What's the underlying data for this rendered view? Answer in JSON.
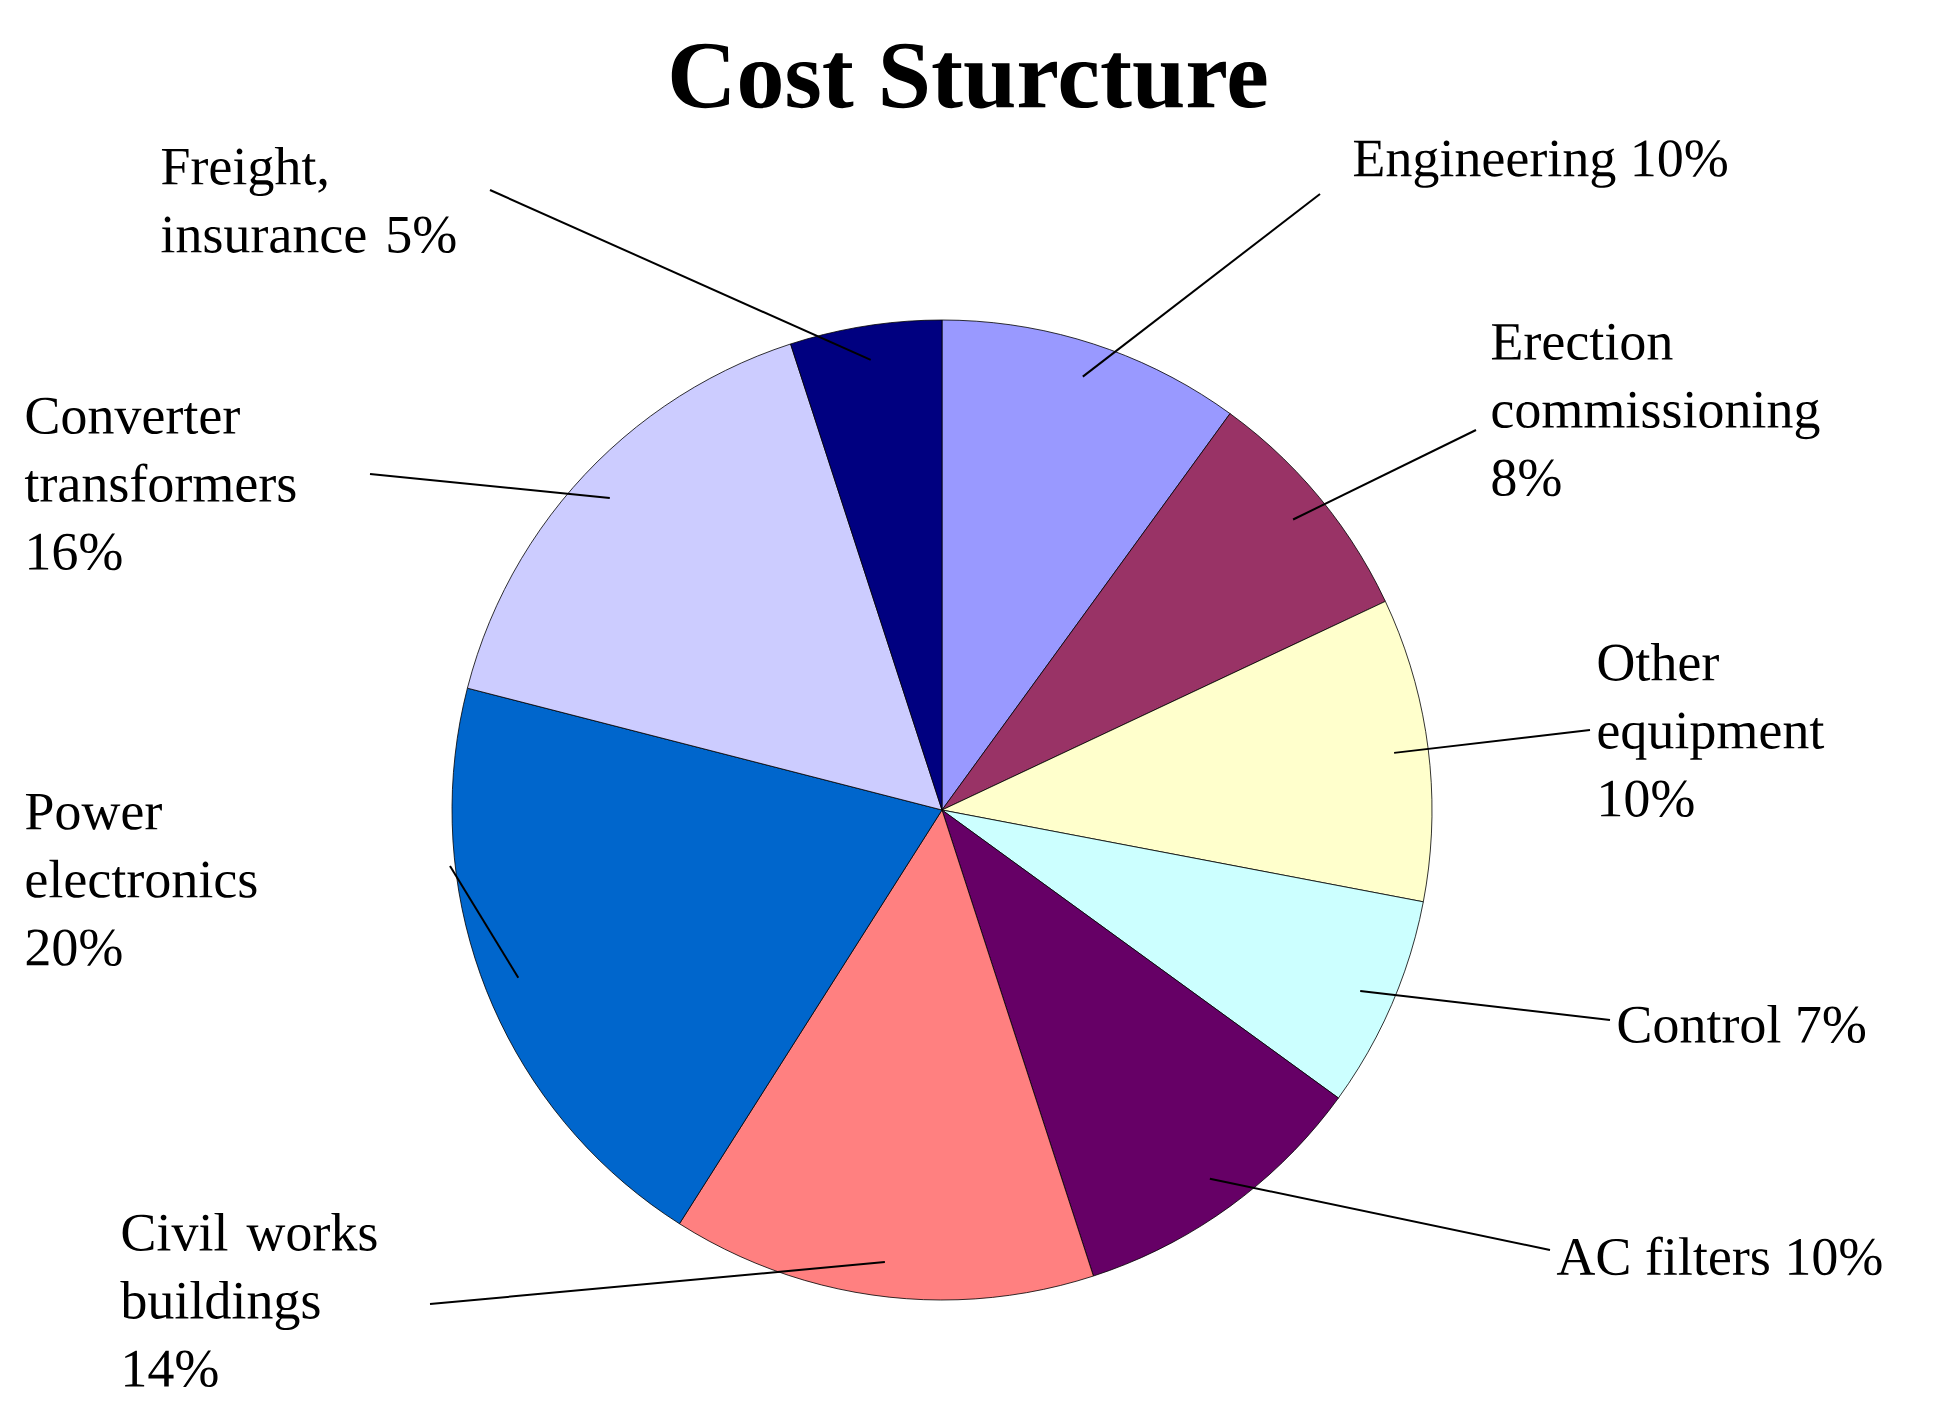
{
  "chart_data": {
    "type": "pie",
    "title": "Cost Sturcture",
    "categories": [
      "Engineering",
      "Erection commissioning",
      "Other equipment",
      "Control",
      "AC filters",
      "Civil works buildings",
      "Power electronics",
      "Converter transformers",
      "Freight, insurance"
    ],
    "values": [
      10,
      8,
      10,
      7,
      10,
      14,
      20,
      16,
      5
    ],
    "value_labels": [
      "10%",
      "8%",
      "10%",
      "7%",
      "10%",
      "14%",
      "20%",
      "16%",
      "5%"
    ],
    "colors": [
      "#9999ff",
      "#993366",
      "#ffffcc",
      "#ccffff",
      "#660066",
      "#ff8080",
      "#0066cc",
      "#ccccff",
      "#000080"
    ]
  }
}
